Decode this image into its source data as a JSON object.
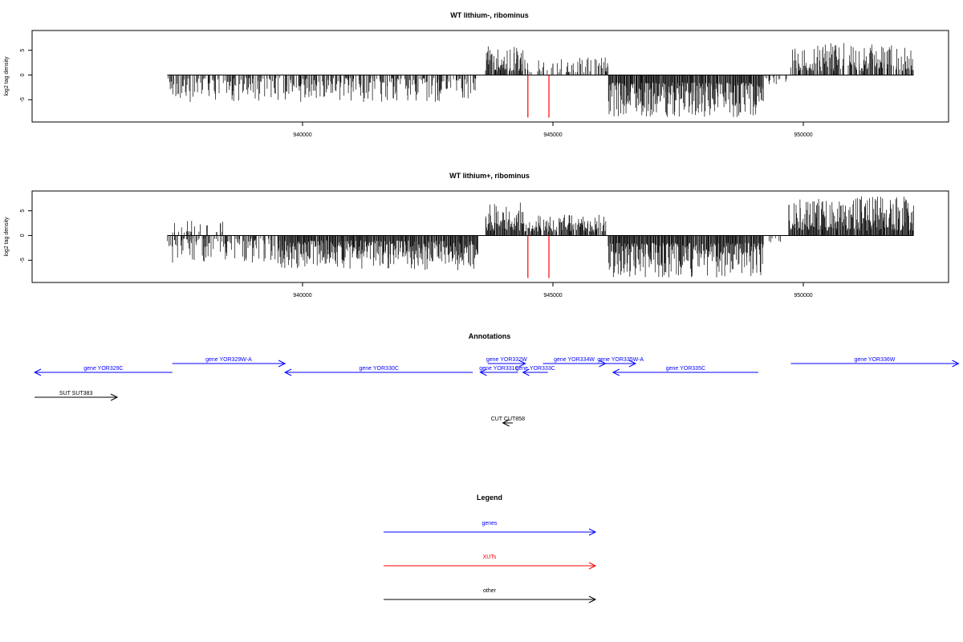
{
  "chart_data": [
    {
      "type": "bar",
      "title": "WT lithium-, ribominus",
      "ylabel": "log2 tag density",
      "xlim": [
        934600,
        952900
      ],
      "ylim": [
        -9.5,
        9
      ],
      "x_ticks": [
        940000,
        945000,
        950000
      ],
      "y_ticks": [
        -5,
        0,
        5
      ],
      "segments": [
        {
          "from": 937300,
          "to": 943500,
          "strand": -1,
          "min": 0.6,
          "max": 5.5,
          "density": 0.55,
          "seed": 11
        },
        {
          "from": 943650,
          "to": 944400,
          "strand": 1,
          "min": 0.8,
          "max": 5.8,
          "density": 0.9,
          "seed": 12
        },
        {
          "from": 944400,
          "to": 946100,
          "strand": 1,
          "min": 0.5,
          "max": 3.6,
          "density": 0.35,
          "seed": 13
        },
        {
          "from": 946100,
          "to": 949200,
          "strand": -1,
          "min": 1.5,
          "max": 8.5,
          "density": 1.0,
          "seed": 14
        },
        {
          "from": 949200,
          "to": 949700,
          "strand": -1,
          "min": 0.5,
          "max": 2.0,
          "density": 0.15,
          "seed": 15
        },
        {
          "from": 949750,
          "to": 952200,
          "strand": 1,
          "min": 0.8,
          "max": 6.5,
          "density": 0.75,
          "seed": 16
        }
      ],
      "red_bars": [
        {
          "x": 944500,
          "value": -8.6
        },
        {
          "x": 944920,
          "value": -8.6
        }
      ]
    },
    {
      "type": "bar",
      "title": "WT lithium+, ribominus",
      "ylabel": "log2 tag density",
      "xlim": [
        934600,
        952900
      ],
      "ylim": [
        -9.5,
        9
      ],
      "x_ticks": [
        940000,
        945000,
        950000
      ],
      "y_ticks": [
        -5,
        0,
        5
      ],
      "segments": [
        {
          "from": 937300,
          "to": 939500,
          "strand": -1,
          "min": 0.6,
          "max": 5.5,
          "density": 0.6,
          "seed": 21
        },
        {
          "from": 937400,
          "to": 938600,
          "strand": 1,
          "min": 0.6,
          "max": 3.3,
          "density": 0.25,
          "seed": 22
        },
        {
          "from": 939500,
          "to": 943500,
          "strand": -1,
          "min": 1.0,
          "max": 7.0,
          "density": 1.0,
          "seed": 23
        },
        {
          "from": 943650,
          "to": 944400,
          "strand": 1,
          "min": 1.0,
          "max": 6.8,
          "density": 1.0,
          "seed": 24
        },
        {
          "from": 944400,
          "to": 946050,
          "strand": 1,
          "min": 0.8,
          "max": 4.2,
          "density": 0.85,
          "seed": 25
        },
        {
          "from": 946100,
          "to": 949200,
          "strand": -1,
          "min": 1.5,
          "max": 8.5,
          "density": 1.0,
          "seed": 26
        },
        {
          "from": 949300,
          "to": 949700,
          "strand": -1,
          "min": 0.5,
          "max": 2.2,
          "density": 0.2,
          "seed": 27
        },
        {
          "from": 949700,
          "to": 952200,
          "strand": 1,
          "min": 1.0,
          "max": 8.0,
          "density": 1.0,
          "seed": 28
        }
      ],
      "red_bars": [
        {
          "x": 944500,
          "value": -8.6
        },
        {
          "x": 944920,
          "value": -8.6
        }
      ]
    }
  ],
  "annotations": {
    "title": "Annotations",
    "colors": {
      "genes": "#0000ff",
      "xuts": "#ff0000",
      "other": "#000000"
    },
    "features": [
      {
        "label": "gene YOR329W-A",
        "type": "gene",
        "start": 937400,
        "end": 939650,
        "dir": 1,
        "row": 0
      },
      {
        "label": "gene YOR329C",
        "type": "gene",
        "start": 934650,
        "end": 937400,
        "dir": -1,
        "row": 1
      },
      {
        "label": "gene YOR330C",
        "type": "gene",
        "start": 939650,
        "end": 943400,
        "dir": -1,
        "row": 1
      },
      {
        "label": "gene YOR332W",
        "type": "gene",
        "start": 943700,
        "end": 944450,
        "dir": 1,
        "row": 0
      },
      {
        "label": "gene YOR331C",
        "type": "gene",
        "start": 943550,
        "end": 944300,
        "dir": -1,
        "row": 1
      },
      {
        "label": "gene YOR333C",
        "type": "gene",
        "start": 944400,
        "end": 944900,
        "dir": -1,
        "row": 1
      },
      {
        "label": "gene YOR334W",
        "type": "gene",
        "start": 944800,
        "end": 946050,
        "dir": 1,
        "row": 0
      },
      {
        "label": "gene YOR335W-A",
        "type": "gene",
        "start": 946050,
        "end": 946650,
        "dir": 1,
        "row": 0
      },
      {
        "label": "gene YOR335C",
        "type": "gene",
        "start": 946200,
        "end": 949100,
        "dir": -1,
        "row": 1
      },
      {
        "label": "gene YOR336W",
        "type": "gene",
        "start": 949750,
        "end": 953100,
        "dir": 1,
        "row": 0
      },
      {
        "label": "SUT SUT383",
        "type": "other",
        "start": 934650,
        "end": 936300,
        "dir": 1,
        "row": 2
      },
      {
        "label": "CUT CUT858",
        "type": "other",
        "start": 944000,
        "end": 944200,
        "dir": -1,
        "row": 3
      }
    ]
  },
  "legend": {
    "title": "Legend",
    "items": [
      {
        "label": "genes",
        "color": "#0000ff"
      },
      {
        "label": "XUTs",
        "color": "#ff0000"
      },
      {
        "label": "other",
        "color": "#000000"
      }
    ]
  }
}
